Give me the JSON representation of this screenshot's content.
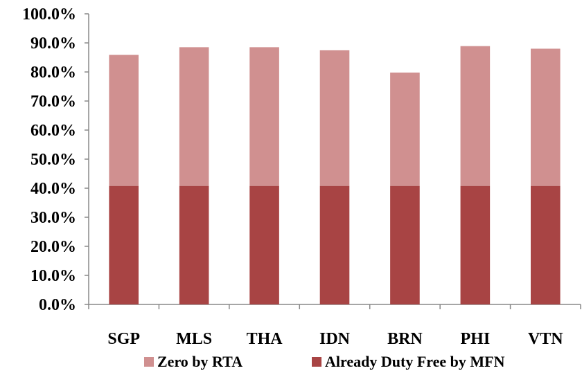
{
  "chart_data": {
    "type": "bar",
    "stacked": true,
    "categories": [
      "SGP",
      "MLS",
      "THA",
      "IDN",
      "BRN",
      "PHI",
      "VTN"
    ],
    "series": [
      {
        "name": "Already Duty Free by MFN",
        "values": [
          40.8,
          40.8,
          40.8,
          40.8,
          40.8,
          40.8,
          40.8
        ],
        "color": "#a84444"
      },
      {
        "name": "Zero by RTA",
        "values": [
          45.1,
          47.7,
          47.7,
          46.7,
          39.0,
          48.1,
          47.2
        ],
        "color": "#d09090"
      }
    ],
    "ylim": [
      0,
      100
    ],
    "yticks": [
      "0.0%",
      "10.0%",
      "20.0%",
      "30.0%",
      "40.0%",
      "50.0%",
      "60.0%",
      "70.0%",
      "80.0%",
      "90.0%",
      "100.0%"
    ],
    "legend_position": "bottom",
    "legend_order": [
      "Zero by RTA",
      "Already Duty Free by MFN"
    ],
    "grid": false,
    "title": "",
    "xlabel": "",
    "ylabel": ""
  }
}
